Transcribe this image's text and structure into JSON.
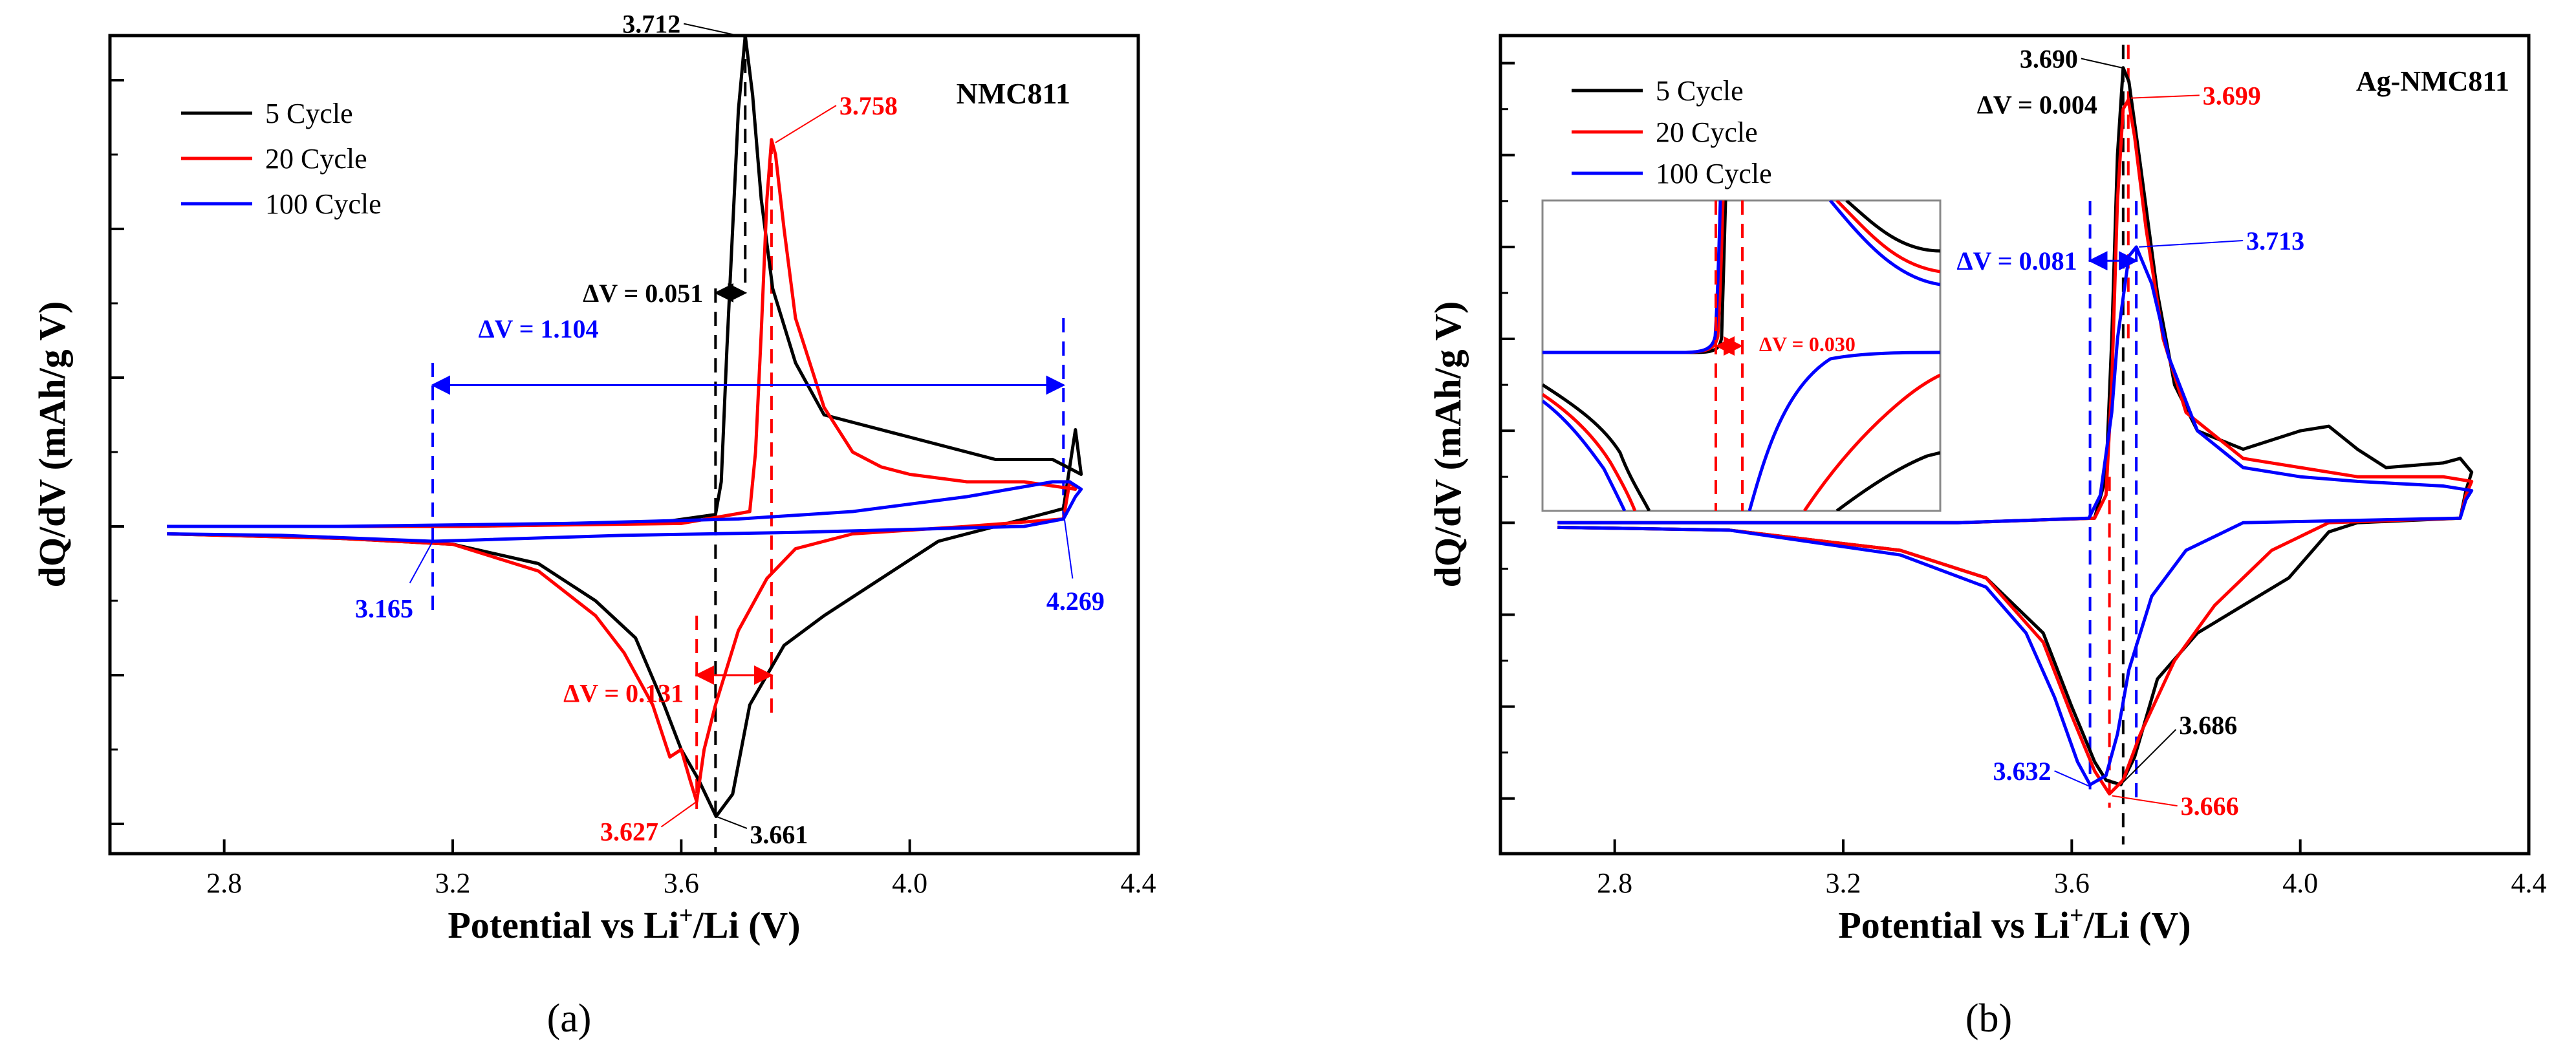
{
  "colors": {
    "cycle5": "#000000",
    "cycle20": "#ff0000",
    "cycle100": "#0000ff"
  },
  "chart_data": [
    {
      "type": "line",
      "panel_label": "(a)",
      "title": "NMC811",
      "xlabel": "Potential vs Li",
      "xlabel_sup": "+",
      "xlabel_tail": "/Li (V)",
      "ylabel": "dQ/dV (mAh/g V)",
      "xlim": [
        2.6,
        4.4
      ],
      "ylim": [
        -2.2,
        3.3
      ],
      "xticks": [
        2.8,
        3.2,
        3.6,
        4.0,
        4.4
      ],
      "xtick_labels": [
        "2.8",
        "3.2",
        "3.6",
        "4.0",
        "4.4"
      ],
      "yticks": [
        -2,
        -1,
        0,
        1,
        2,
        3
      ],
      "legend": [
        "5 Cycle",
        "20 Cycle",
        "100 Cycle"
      ],
      "legend_position": "top-left",
      "series": [
        {
          "name": "5 Cycle",
          "color": "#000000",
          "points": [
            [
              2.7,
              -0.05
            ],
            [
              3.0,
              -0.08
            ],
            [
              3.2,
              -0.12
            ],
            [
              3.35,
              -0.25
            ],
            [
              3.45,
              -0.5
            ],
            [
              3.52,
              -0.75
            ],
            [
              3.57,
              -1.2
            ],
            [
              3.6,
              -1.5
            ],
            [
              3.63,
              -1.7
            ],
            [
              3.661,
              -1.95
            ],
            [
              3.69,
              -1.8
            ],
            [
              3.72,
              -1.2
            ],
            [
              3.78,
              -0.8
            ],
            [
              3.85,
              -0.6
            ],
            [
              3.95,
              -0.35
            ],
            [
              4.05,
              -0.1
            ],
            [
              4.15,
              0.0
            ],
            [
              4.25,
              0.1
            ],
            [
              4.269,
              0.12
            ],
            [
              4.28,
              0.4
            ],
            [
              4.29,
              0.65
            ],
            [
              4.3,
              0.35
            ],
            [
              4.25,
              0.45
            ],
            [
              4.15,
              0.45
            ],
            [
              4.0,
              0.6
            ],
            [
              3.9,
              0.7
            ],
            [
              3.85,
              0.75
            ],
            [
              3.8,
              1.1
            ],
            [
              3.76,
              1.6
            ],
            [
              3.74,
              2.2
            ],
            [
              3.725,
              2.9
            ],
            [
              3.712,
              3.3
            ],
            [
              3.7,
              2.8
            ],
            [
              3.69,
              2.0
            ],
            [
              3.68,
              1.2
            ],
            [
              3.67,
              0.3
            ],
            [
              3.66,
              0.08
            ],
            [
              3.55,
              0.02
            ],
            [
              3.2,
              0.0
            ],
            [
              2.7,
              0.0
            ]
          ]
        },
        {
          "name": "20 Cycle",
          "color": "#ff0000",
          "points": [
            [
              2.7,
              -0.05
            ],
            [
              3.0,
              -0.08
            ],
            [
              3.2,
              -0.12
            ],
            [
              3.35,
              -0.3
            ],
            [
              3.45,
              -0.6
            ],
            [
              3.5,
              -0.85
            ],
            [
              3.55,
              -1.2
            ],
            [
              3.58,
              -1.55
            ],
            [
              3.6,
              -1.5
            ],
            [
              3.615,
              -1.7
            ],
            [
              3.627,
              -1.85
            ],
            [
              3.64,
              -1.5
            ],
            [
              3.66,
              -1.2
            ],
            [
              3.7,
              -0.7
            ],
            [
              3.75,
              -0.35
            ],
            [
              3.8,
              -0.15
            ],
            [
              3.9,
              -0.05
            ],
            [
              4.1,
              0.0
            ],
            [
              4.269,
              0.05
            ],
            [
              4.28,
              0.3
            ],
            [
              4.29,
              0.25
            ],
            [
              4.2,
              0.3
            ],
            [
              4.1,
              0.3
            ],
            [
              4.0,
              0.35
            ],
            [
              3.95,
              0.4
            ],
            [
              3.9,
              0.5
            ],
            [
              3.85,
              0.8
            ],
            [
              3.8,
              1.4
            ],
            [
              3.78,
              2.0
            ],
            [
              3.765,
              2.5
            ],
            [
              3.758,
              2.6
            ],
            [
              3.75,
              2.2
            ],
            [
              3.74,
              1.3
            ],
            [
              3.73,
              0.5
            ],
            [
              3.72,
              0.1
            ],
            [
              3.6,
              0.02
            ],
            [
              3.2,
              0.0
            ],
            [
              2.7,
              0.0
            ]
          ]
        },
        {
          "name": "100 Cycle",
          "color": "#0000ff",
          "points": [
            [
              2.7,
              -0.05
            ],
            [
              2.9,
              -0.06
            ],
            [
              3.1,
              -0.09
            ],
            [
              3.165,
              -0.1
            ],
            [
              3.25,
              -0.09
            ],
            [
              3.5,
              -0.06
            ],
            [
              3.8,
              -0.04
            ],
            [
              4.0,
              -0.02
            ],
            [
              4.2,
              0.0
            ],
            [
              4.269,
              0.05
            ],
            [
              4.29,
              0.2
            ],
            [
              4.3,
              0.25
            ],
            [
              4.28,
              0.3
            ],
            [
              4.25,
              0.3
            ],
            [
              4.1,
              0.2
            ],
            [
              3.9,
              0.1
            ],
            [
              3.7,
              0.05
            ],
            [
              3.4,
              0.02
            ],
            [
              3.0,
              0.0
            ],
            [
              2.7,
              0.0
            ]
          ]
        }
      ],
      "annotations": {
        "peak_5_label": "3.712",
        "peak_20_label": "3.758",
        "dv_5_label": "ΔV = 0.051",
        "dv_100_label": "ΔV = 1.104",
        "dv_20_label": "ΔV = 0.131",
        "val_100_left": "3.165",
        "val_100_right": "4.269",
        "valley_20_label": "3.627",
        "valley_5_label": "3.661"
      }
    },
    {
      "type": "line",
      "panel_label": "(b)",
      "title": "Ag-NMC811",
      "xlabel": "Potential vs Li",
      "xlabel_sup": "+",
      "xlabel_tail": "/Li (V)",
      "ylabel": "dQ/dV (mAh/g V)",
      "xlim": [
        2.6,
        4.4
      ],
      "ylim": [
        -3.6,
        5.3
      ],
      "xticks": [
        2.8,
        3.2,
        3.6,
        4.0,
        4.4
      ],
      "xtick_labels": [
        "2.8",
        "3.2",
        "3.6",
        "4.0",
        "4.4"
      ],
      "yticks": [
        -3,
        -2,
        -1,
        0,
        1,
        2,
        3,
        4,
        5
      ],
      "legend": [
        "5 Cycle",
        "20 Cycle",
        "100 Cycle"
      ],
      "legend_position": "top-left",
      "series": [
        {
          "name": "5 Cycle",
          "color": "#000000",
          "points": [
            [
              2.7,
              -0.05
            ],
            [
              3.0,
              -0.08
            ],
            [
              3.3,
              -0.3
            ],
            [
              3.45,
              -0.6
            ],
            [
              3.55,
              -1.2
            ],
            [
              3.6,
              -2.0
            ],
            [
              3.64,
              -2.6
            ],
            [
              3.66,
              -2.8
            ],
            [
              3.686,
              -2.85
            ],
            [
              3.71,
              -2.55
            ],
            [
              3.75,
              -1.7
            ],
            [
              3.82,
              -1.2
            ],
            [
              3.9,
              -0.9
            ],
            [
              3.98,
              -0.6
            ],
            [
              4.05,
              -0.1
            ],
            [
              4.1,
              0.0
            ],
            [
              4.28,
              0.05
            ],
            [
              4.29,
              0.35
            ],
            [
              4.3,
              0.55
            ],
            [
              4.28,
              0.7
            ],
            [
              4.25,
              0.65
            ],
            [
              4.15,
              0.6
            ],
            [
              4.1,
              0.8
            ],
            [
              4.05,
              1.05
            ],
            [
              4.0,
              1.0
            ],
            [
              3.9,
              0.8
            ],
            [
              3.82,
              1.0
            ],
            [
              3.78,
              1.5
            ],
            [
              3.75,
              2.5
            ],
            [
              3.72,
              3.9
            ],
            [
              3.7,
              4.8
            ],
            [
              3.69,
              4.95
            ],
            [
              3.68,
              4.0
            ],
            [
              3.67,
              2.0
            ],
            [
              3.66,
              0.5
            ],
            [
              3.64,
              0.05
            ],
            [
              3.4,
              0.0
            ],
            [
              2.7,
              0.0
            ]
          ]
        },
        {
          "name": "20 Cycle",
          "color": "#ff0000",
          "points": [
            [
              2.7,
              -0.05
            ],
            [
              3.0,
              -0.08
            ],
            [
              3.3,
              -0.3
            ],
            [
              3.45,
              -0.6
            ],
            [
              3.55,
              -1.3
            ],
            [
              3.6,
              -2.1
            ],
            [
              3.64,
              -2.7
            ],
            [
              3.666,
              -2.95
            ],
            [
              3.69,
              -2.8
            ],
            [
              3.72,
              -2.3
            ],
            [
              3.78,
              -1.5
            ],
            [
              3.85,
              -0.9
            ],
            [
              3.95,
              -0.3
            ],
            [
              4.05,
              0.0
            ],
            [
              4.28,
              0.05
            ],
            [
              4.29,
              0.3
            ],
            [
              4.3,
              0.45
            ],
            [
              4.25,
              0.5
            ],
            [
              4.1,
              0.5
            ],
            [
              4.0,
              0.6
            ],
            [
              3.9,
              0.7
            ],
            [
              3.8,
              1.2
            ],
            [
              3.76,
              2.0
            ],
            [
              3.73,
              3.2
            ],
            [
              3.71,
              4.2
            ],
            [
              3.699,
              4.6
            ],
            [
              3.69,
              4.5
            ],
            [
              3.68,
              3.5
            ],
            [
              3.67,
              1.5
            ],
            [
              3.66,
              0.3
            ],
            [
              3.64,
              0.05
            ],
            [
              3.4,
              0.0
            ],
            [
              2.7,
              0.0
            ]
          ]
        },
        {
          "name": "100 Cycle",
          "color": "#0000ff",
          "points": [
            [
              2.7,
              -0.05
            ],
            [
              3.0,
              -0.08
            ],
            [
              3.3,
              -0.35
            ],
            [
              3.45,
              -0.7
            ],
            [
              3.52,
              -1.2
            ],
            [
              3.57,
              -1.9
            ],
            [
              3.61,
              -2.6
            ],
            [
              3.632,
              -2.85
            ],
            [
              3.66,
              -2.75
            ],
            [
              3.68,
              -2.3
            ],
            [
              3.7,
              -1.6
            ],
            [
              3.74,
              -0.8
            ],
            [
              3.8,
              -0.3
            ],
            [
              3.9,
              0.0
            ],
            [
              4.28,
              0.05
            ],
            [
              4.29,
              0.25
            ],
            [
              4.3,
              0.35
            ],
            [
              4.25,
              0.4
            ],
            [
              4.1,
              0.45
            ],
            [
              4.0,
              0.5
            ],
            [
              3.9,
              0.6
            ],
            [
              3.82,
              1.0
            ],
            [
              3.77,
              1.8
            ],
            [
              3.74,
              2.6
            ],
            [
              3.713,
              3.0
            ],
            [
              3.7,
              2.9
            ],
            [
              3.68,
              2.0
            ],
            [
              3.67,
              1.2
            ],
            [
              3.65,
              0.3
            ],
            [
              3.63,
              0.05
            ],
            [
              3.4,
              0.0
            ],
            [
              2.7,
              0.0
            ]
          ]
        }
      ],
      "annotations": {
        "peak_5_label": "3.690",
        "peak_20_label": "3.699",
        "peak_100_label": "3.713",
        "dv_5_label": "ΔV = 0.004",
        "dv_100_label": "ΔV = 0.081",
        "inset_dv_label": "ΔV = 0.030",
        "valley_100_label": "3.632",
        "valley_5_label": "3.686",
        "valley_20_label": "3.666"
      }
    }
  ]
}
